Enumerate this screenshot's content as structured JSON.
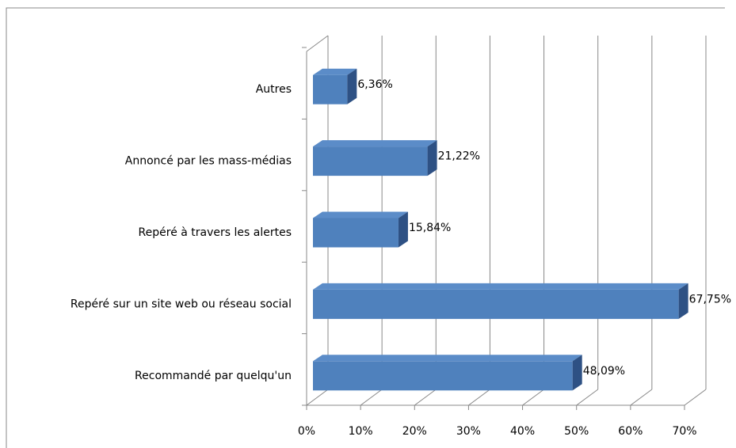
{
  "chart_data": {
    "type": "bar3d_horizontal",
    "categories": [
      "Autres",
      "Annoncé par les mass-médias",
      "Repéré à travers les alertes",
      "Repéré sur un site web ou réseau social",
      "Recommandé par quelqu'un"
    ],
    "values": [
      6.36,
      21.22,
      15.84,
      67.75,
      48.09
    ],
    "value_labels": [
      "6,36%",
      "21,22%",
      "15,84%",
      "67,75%",
      "48,09%"
    ],
    "color": "#4f81bd",
    "xlim": [
      0,
      70
    ],
    "xticks": [
      {
        "value": 0,
        "label": "0%"
      },
      {
        "value": 10,
        "label": "10%"
      },
      {
        "value": 20,
        "label": "20%"
      },
      {
        "value": 30,
        "label": "30%"
      },
      {
        "value": 40,
        "label": "40%"
      },
      {
        "value": 50,
        "label": "50%"
      },
      {
        "value": 60,
        "label": "60%"
      },
      {
        "value": 70,
        "label": "70%"
      }
    ],
    "grid": true
  }
}
